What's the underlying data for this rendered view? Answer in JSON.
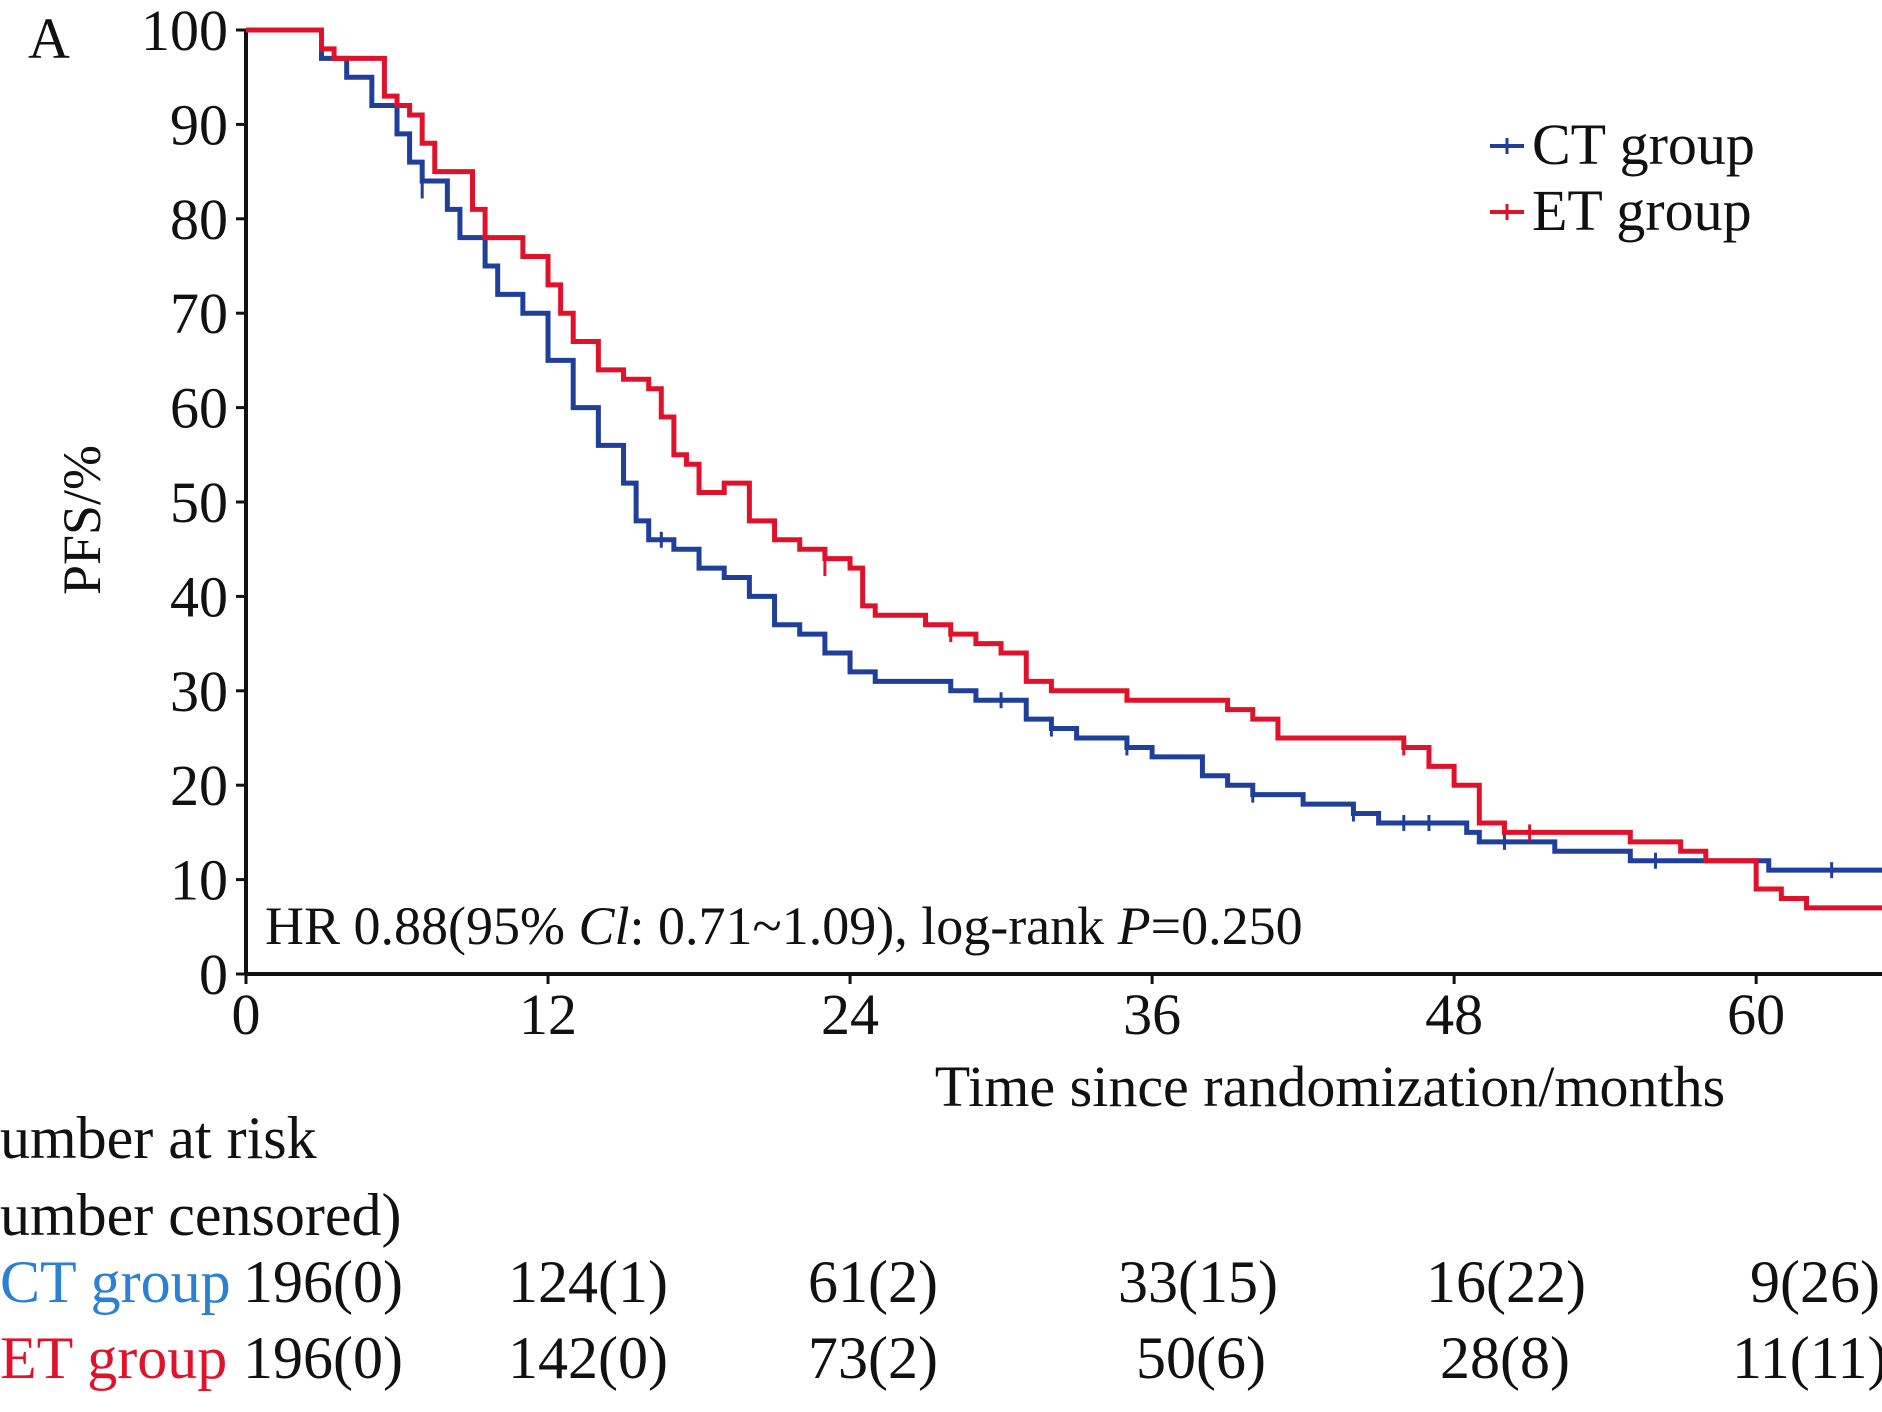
{
  "panel_label": "A",
  "colors": {
    "ct": "#1f3f9a",
    "et": "#e0122b",
    "ct_label": "#2b7fd4",
    "et_label": "#e0122b",
    "axis": "#111111"
  },
  "annotation": {
    "prefix": "HR 0.88(95% ",
    "ci_italic": "Cl",
    "ci_rest": ": 0.71~1.09), log-rank ",
    "p_italic": "P",
    "p_rest": "=0.250"
  },
  "risk_table": {
    "heading_line1": "umber at risk",
    "heading_line2": "umber censored)",
    "rows": [
      {
        "label_a": "CT",
        "label_b": " group",
        "color_key": "ct_label",
        "values": [
          "196(0)",
          "124(1)",
          "61(2)",
          "33(15)",
          "16(22)",
          "9(26)"
        ]
      },
      {
        "label_a": "ET",
        "label_b": " group",
        "color_key": "et_label",
        "values": [
          "196(0)",
          "142(0)",
          "73(2)",
          "50(6)",
          "28(8)",
          "11(11)"
        ]
      }
    ]
  },
  "chart_data": {
    "type": "line",
    "subtype": "kaplan-meier step curve",
    "xlabel": "Time since randomization/months",
    "ylabel": "PFS/%",
    "xlim": [
      0,
      65
    ],
    "ylim": [
      0,
      100
    ],
    "xticks": [
      0,
      12,
      24,
      36,
      48,
      60
    ],
    "yticks": [
      0,
      10,
      20,
      30,
      40,
      50,
      60,
      70,
      80,
      90,
      100
    ],
    "grid": false,
    "legend_position": "top-right",
    "series": [
      {
        "name": "CT group",
        "color_key": "ct",
        "points": [
          [
            0,
            100
          ],
          [
            2.5,
            100
          ],
          [
            3,
            97
          ],
          [
            4,
            95
          ],
          [
            5,
            92
          ],
          [
            6,
            89
          ],
          [
            6.5,
            86
          ],
          [
            7,
            84
          ],
          [
            8,
            81
          ],
          [
            8.5,
            78
          ],
          [
            9.5,
            75
          ],
          [
            10,
            72
          ],
          [
            11,
            70
          ],
          [
            12,
            65
          ],
          [
            13,
            60
          ],
          [
            14,
            56
          ],
          [
            15,
            52
          ],
          [
            15.5,
            48
          ],
          [
            16,
            46
          ],
          [
            17,
            45
          ],
          [
            18,
            43
          ],
          [
            19,
            42
          ],
          [
            20,
            40
          ],
          [
            21,
            37
          ],
          [
            22,
            36
          ],
          [
            23,
            34
          ],
          [
            24,
            32
          ],
          [
            25,
            31
          ],
          [
            27,
            31
          ],
          [
            28,
            30
          ],
          [
            29,
            29
          ],
          [
            30,
            29
          ],
          [
            31,
            27
          ],
          [
            32,
            26
          ],
          [
            33,
            25
          ],
          [
            34,
            25
          ],
          [
            35,
            24
          ],
          [
            36,
            23
          ],
          [
            37,
            23
          ],
          [
            38,
            21
          ],
          [
            39,
            20
          ],
          [
            40,
            19
          ],
          [
            41,
            19
          ],
          [
            42,
            18
          ],
          [
            43,
            18
          ],
          [
            44,
            17
          ],
          [
            45,
            16
          ],
          [
            47,
            16
          ],
          [
            48,
            16
          ],
          [
            48.5,
            15
          ],
          [
            49,
            14
          ],
          [
            51,
            14
          ],
          [
            52,
            13
          ],
          [
            53,
            13
          ],
          [
            54,
            13
          ],
          [
            55,
            12
          ],
          [
            56,
            12
          ],
          [
            60,
            12
          ],
          [
            60.5,
            11
          ],
          [
            65,
            11
          ]
        ],
        "censor_marks": [
          [
            7,
            83
          ],
          [
            16.5,
            46
          ],
          [
            30,
            29
          ],
          [
            32,
            26
          ],
          [
            35,
            24
          ],
          [
            40,
            19
          ],
          [
            44,
            17
          ],
          [
            46,
            16
          ],
          [
            47,
            16
          ],
          [
            50,
            14
          ],
          [
            56,
            12
          ],
          [
            63,
            11
          ]
        ]
      },
      {
        "name": "ET group",
        "color_key": "et",
        "points": [
          [
            0,
            100
          ],
          [
            2.5,
            100
          ],
          [
            3,
            98
          ],
          [
            3.5,
            97
          ],
          [
            4,
            97
          ],
          [
            5,
            97
          ],
          [
            5.5,
            93
          ],
          [
            6,
            92
          ],
          [
            6.5,
            91
          ],
          [
            7,
            88
          ],
          [
            7.5,
            85
          ],
          [
            8.5,
            85
          ],
          [
            9,
            81
          ],
          [
            9.5,
            78
          ],
          [
            10.5,
            78
          ],
          [
            11,
            76
          ],
          [
            12,
            73
          ],
          [
            12.5,
            70
          ],
          [
            13,
            67
          ],
          [
            14,
            64
          ],
          [
            15,
            63
          ],
          [
            16,
            62
          ],
          [
            16.5,
            59
          ],
          [
            17,
            55
          ],
          [
            17.5,
            54
          ],
          [
            18,
            51
          ],
          [
            19,
            52
          ],
          [
            20,
            48
          ],
          [
            21,
            46
          ],
          [
            22,
            45
          ],
          [
            23,
            44
          ],
          [
            24,
            43
          ],
          [
            24.5,
            39
          ],
          [
            25,
            38
          ],
          [
            27,
            37
          ],
          [
            28,
            36
          ],
          [
            29,
            35
          ],
          [
            30,
            34
          ],
          [
            31,
            31
          ],
          [
            32,
            30
          ],
          [
            34,
            30
          ],
          [
            35,
            29
          ],
          [
            38,
            29
          ],
          [
            39,
            28
          ],
          [
            40,
            27
          ],
          [
            41,
            25
          ],
          [
            45,
            25
          ],
          [
            46,
            24
          ],
          [
            47,
            22
          ],
          [
            48,
            20
          ],
          [
            49,
            16
          ],
          [
            50,
            15
          ],
          [
            54,
            15
          ],
          [
            55,
            14
          ],
          [
            57,
            13
          ],
          [
            58,
            12
          ],
          [
            60,
            9
          ],
          [
            61,
            8
          ],
          [
            62,
            7
          ],
          [
            65,
            7
          ]
        ],
        "censor_marks": [
          [
            23,
            43
          ],
          [
            28,
            36
          ],
          [
            46,
            24
          ],
          [
            51,
            15
          ]
        ]
      }
    ]
  }
}
